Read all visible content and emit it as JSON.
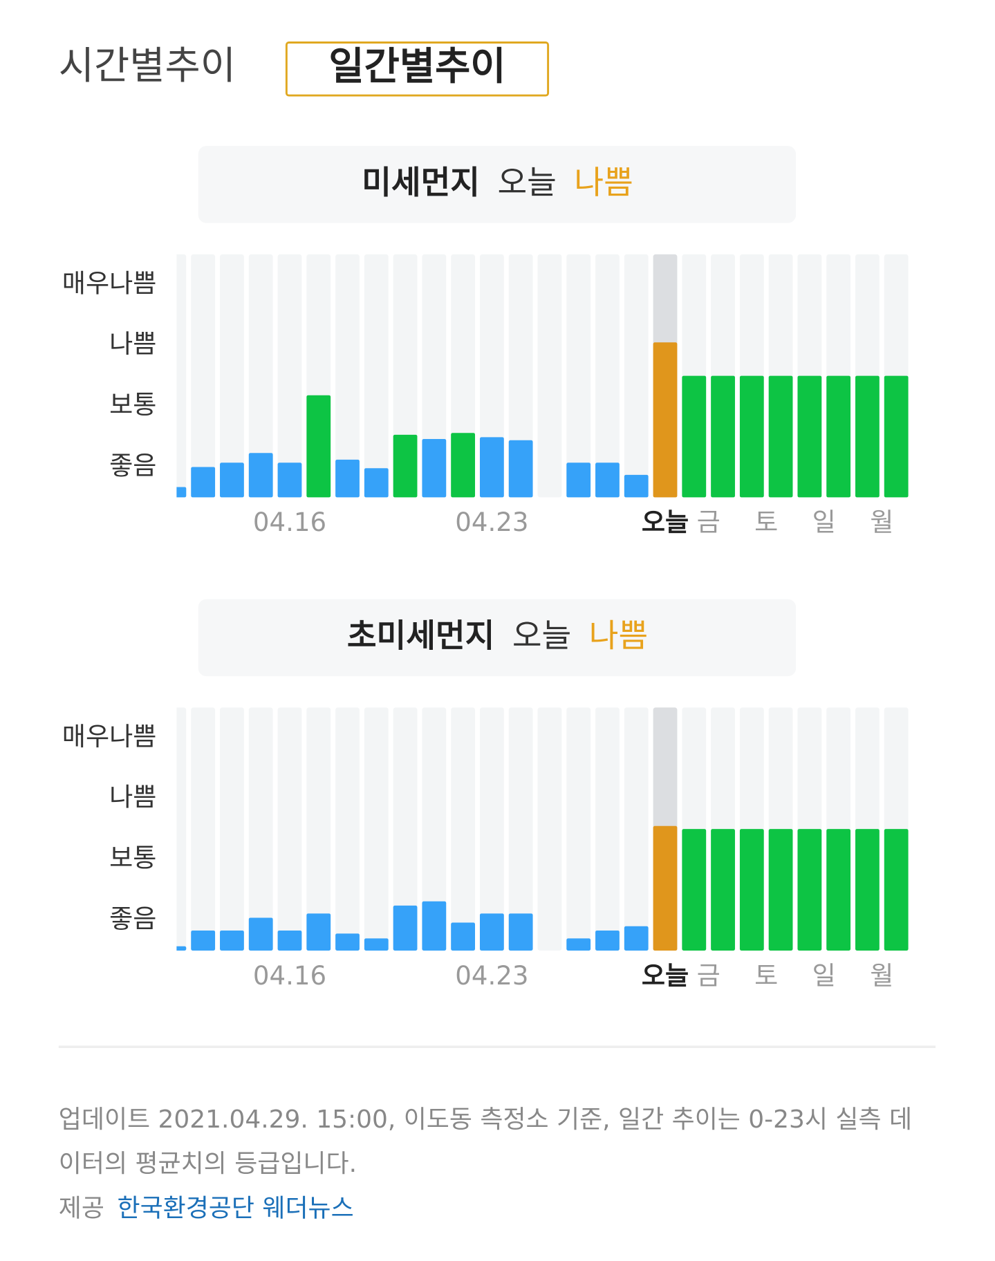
{
  "tabs": {
    "hourly": "시간별추이",
    "daily": "일간별추이"
  },
  "chart_data": [
    {
      "type": "bar",
      "title": "미세먼지",
      "status_prefix": "오늘",
      "status": "나쁨",
      "categories": [
        null,
        null,
        null,
        null,
        "04.16",
        null,
        null,
        null,
        null,
        null,
        null,
        "04.23",
        null,
        null,
        null,
        null,
        null,
        "오늘",
        "금",
        null,
        "토",
        null,
        "일",
        null,
        "월",
        null
      ],
      "values": [
        0.17,
        0.5,
        0.57,
        0.73,
        0.57,
        1.68,
        0.62,
        0.48,
        1.03,
        0.96,
        1.06,
        0.99,
        0.94,
        null,
        0.57,
        0.57,
        0.37,
        2.55,
        2.0,
        2.0,
        2.0,
        2.0,
        2.0,
        2.0,
        2.0,
        2.0
      ],
      "colors": [
        "#36a2f9",
        "#36a2f9",
        "#36a2f9",
        "#36a2f9",
        "#36a2f9",
        "#0dc444",
        "#36a2f9",
        "#36a2f9",
        "#0dc444",
        "#36a2f9",
        "#0dc444",
        "#36a2f9",
        "#36a2f9",
        "#36a2f9",
        "#36a2f9",
        "#36a2f9",
        "#36a2f9",
        "#e0961c",
        "#0dc444",
        "#0dc444",
        "#0dc444",
        "#0dc444",
        "#0dc444",
        "#0dc444",
        "#0dc444",
        "#0dc444"
      ],
      "highlight": 17,
      "ylim": [
        0,
        4
      ],
      "yticks": [
        {
          "value": 0.5,
          "label": "좋음"
        },
        {
          "value": 1.5,
          "label": "보통"
        },
        {
          "value": 2.5,
          "label": "나쁨"
        },
        {
          "value": 3.5,
          "label": "매우나쁨"
        }
      ]
    },
    {
      "type": "bar",
      "title": "초미세먼지",
      "status_prefix": "오늘",
      "status": "나쁨",
      "categories": [
        null,
        null,
        null,
        null,
        "04.16",
        null,
        null,
        null,
        null,
        null,
        null,
        "04.23",
        null,
        null,
        null,
        null,
        null,
        "오늘",
        "금",
        null,
        "토",
        null,
        "일",
        null,
        "월",
        null
      ],
      "values": [
        0.07,
        0.33,
        0.33,
        0.54,
        0.33,
        0.61,
        0.28,
        0.2,
        0.74,
        0.81,
        0.46,
        0.61,
        0.61,
        null,
        0.2,
        0.33,
        0.4,
        2.05,
        2.0,
        2.0,
        2.0,
        2.0,
        2.0,
        2.0,
        2.0,
        2.0
      ],
      "colors": [
        "#36a2f9",
        "#36a2f9",
        "#36a2f9",
        "#36a2f9",
        "#36a2f9",
        "#36a2f9",
        "#36a2f9",
        "#36a2f9",
        "#36a2f9",
        "#36a2f9",
        "#36a2f9",
        "#36a2f9",
        "#36a2f9",
        "#36a2f9",
        "#36a2f9",
        "#36a2f9",
        "#36a2f9",
        "#e0961c",
        "#0dc444",
        "#0dc444",
        "#0dc444",
        "#0dc444",
        "#0dc444",
        "#0dc444",
        "#0dc444",
        "#0dc444"
      ],
      "highlight": 17,
      "ylim": [
        0,
        4
      ],
      "yticks": [
        {
          "value": 0.5,
          "label": "좋음"
        },
        {
          "value": 1.5,
          "label": "보통"
        },
        {
          "value": 2.5,
          "label": "나쁨"
        },
        {
          "value": 3.5,
          "label": "매우나쁨"
        }
      ]
    }
  ],
  "footer": {
    "note_lines": [
      "업데이트 2021.04.29. 15:00, 이도동 측정소 기준, 일간 추이는 0-23시 실측 데",
      "이터의 평균치의 등급입니다."
    ],
    "source_label": "제공",
    "source_link": "한국환경공단 웨더뉴스"
  }
}
